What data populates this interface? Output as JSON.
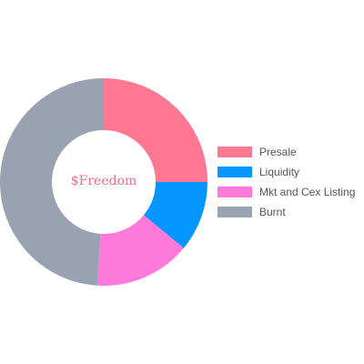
{
  "chart_data": {
    "type": "pie",
    "variant": "doughnut",
    "center_text": "$Freedom",
    "legend_position": "right",
    "labels": [
      "Presale",
      "Liquidity",
      "Mkt and Cex Listing",
      "Burnt"
    ],
    "values": [
      25,
      11,
      15,
      49
    ],
    "colors": [
      "#ff7891",
      "#0596ff",
      "#ff78dc",
      "#98a2b0"
    ]
  }
}
